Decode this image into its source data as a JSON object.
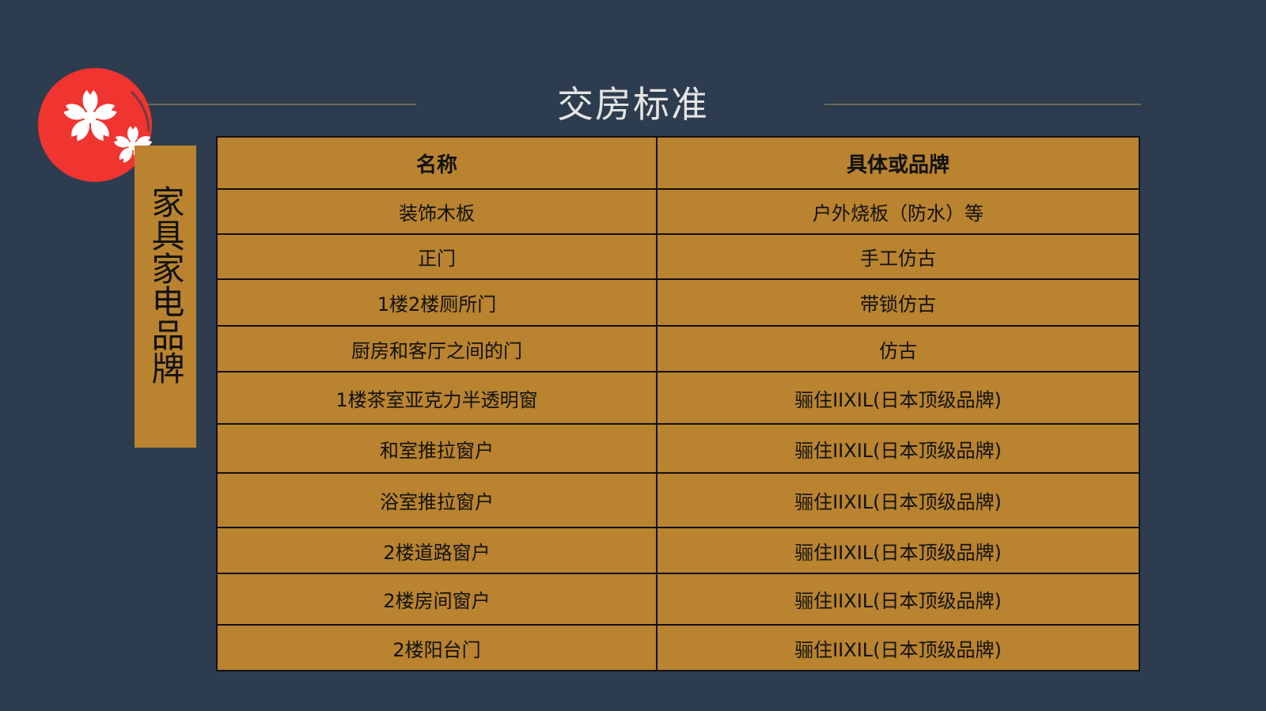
{
  "title": "交房标准",
  "side_label": "家具家电品牌",
  "colors": {
    "background": "#2d3c4e",
    "table_fill": "#b9832f",
    "logo_red": "#f0342f"
  },
  "logo": {
    "icon": "sakura-flower-red-sun-icon"
  },
  "table": {
    "headers": [
      "名称",
      "具体或品牌"
    ],
    "rows": [
      [
        "装饰木板",
        "户外烧板（防水）等"
      ],
      [
        "正门",
        "手工仿古"
      ],
      [
        "1楼2楼厕所门",
        "带锁仿古"
      ],
      [
        "厨房和客厅之间的门",
        "仿古"
      ],
      [
        "1楼茶室亚克力半透明窗",
        "骊住IIXIL(日本顶级品牌)"
      ],
      [
        "和室推拉窗户",
        "骊住IIXIL(日本顶级品牌)"
      ],
      [
        "浴室推拉窗户",
        "骊住IIXIL(日本顶级品牌)"
      ],
      [
        "2楼道路窗户",
        "骊住IIXIL(日本顶级品牌)"
      ],
      [
        "2楼房间窗户",
        "骊住IIXIL(日本顶级品牌)"
      ],
      [
        "2楼阳台门",
        "骊住IIXIL(日本顶级品牌)"
      ]
    ]
  }
}
